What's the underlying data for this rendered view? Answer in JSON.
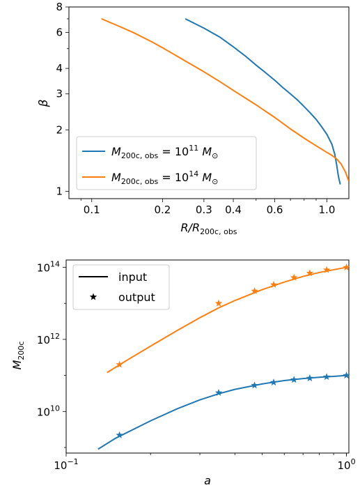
{
  "colors": {
    "blue": "#1f77b4",
    "orange": "#ff7f0e"
  },
  "chart_data": [
    {
      "type": "line",
      "xscale": "log",
      "yscale": "log",
      "xlim": [
        0.08,
        1.24
      ],
      "ylim": [
        0.92,
        8
      ],
      "xlabel_main": "R/R",
      "xlabel_sub": "200c, obs",
      "ylabel": "β",
      "xticks": [
        {
          "v": 0.1,
          "label": "0.1"
        },
        {
          "v": 0.2,
          "label": "0.2"
        },
        {
          "v": 0.3,
          "label": "0.3"
        },
        {
          "v": 0.4,
          "label": "0.4"
        },
        {
          "v": 0.6,
          "label": "0.6"
        },
        {
          "v": 1.0,
          "label": "1.0"
        }
      ],
      "yticks": [
        {
          "v": 1,
          "label": "1"
        },
        {
          "v": 2,
          "label": "2"
        },
        {
          "v": 3,
          "label": "3"
        },
        {
          "v": 4,
          "label": "4"
        },
        {
          "v": 6,
          "label": "6"
        },
        {
          "v": 8,
          "label": "8"
        }
      ],
      "legend": {
        "loc": "lower left"
      },
      "series": [
        {
          "name_pre": "M",
          "name_sub": "200c, obs",
          "name_mid": " = 10",
          "name_sup": "11",
          "name_post": " M",
          "name_post_sub": "⊙",
          "color": "#1f77b4",
          "x": [
            0.25,
            0.3,
            0.35,
            0.4,
            0.45,
            0.5,
            0.55,
            0.6,
            0.65,
            0.7,
            0.75,
            0.8,
            0.85,
            0.9,
            0.95,
            1.0,
            1.05,
            1.08,
            1.1,
            1.12,
            1.14
          ],
          "y": [
            7.0,
            6.3,
            5.7,
            5.1,
            4.6,
            4.15,
            3.8,
            3.5,
            3.22,
            3.0,
            2.8,
            2.6,
            2.42,
            2.25,
            2.07,
            1.9,
            1.7,
            1.52,
            1.35,
            1.18,
            1.08
          ]
        },
        {
          "name_pre": "M",
          "name_sub": "200c, obs",
          "name_mid": " = 10",
          "name_sup": "14",
          "name_post": " M",
          "name_post_sub": "⊙",
          "color": "#ff7f0e",
          "x": [
            0.11,
            0.13,
            0.15,
            0.18,
            0.2,
            0.25,
            0.3,
            0.35,
            0.4,
            0.5,
            0.6,
            0.7,
            0.8,
            0.9,
            1.0,
            1.05,
            1.1,
            1.15,
            1.2,
            1.24
          ],
          "y": [
            7.0,
            6.45,
            6.0,
            5.4,
            5.05,
            4.35,
            3.85,
            3.45,
            3.12,
            2.65,
            2.3,
            2.02,
            1.82,
            1.67,
            1.55,
            1.5,
            1.44,
            1.36,
            1.24,
            1.12
          ]
        }
      ]
    },
    {
      "type": "line",
      "xscale": "log",
      "yscale": "log",
      "xlim": [
        0.1,
        1.02
      ],
      "ylim": [
        700000000.0,
        160000000000000.0
      ],
      "xlabel": "a",
      "ylabel_main": "M",
      "ylabel_sub": "200c",
      "xticks": [
        {
          "v": 0.1,
          "base": "10",
          "exp": "−1"
        },
        {
          "v": 1.0,
          "base": "10",
          "exp": "0"
        }
      ],
      "yticks": [
        {
          "v": 10000000000.0,
          "base": "10",
          "exp": "10"
        },
        {
          "v": 1000000000000.0,
          "base": "10",
          "exp": "12"
        },
        {
          "v": 100000000000000.0,
          "base": "10",
          "exp": "14"
        }
      ],
      "legend": {
        "loc": "upper left",
        "entries": [
          {
            "label": "input",
            "marker": "line"
          },
          {
            "label": "output",
            "marker": "star"
          }
        ]
      },
      "series": [
        {
          "name": "input",
          "color": "#ff7f0e",
          "style": "line",
          "x": [
            0.14,
            0.16,
            0.2,
            0.25,
            0.3,
            0.35,
            0.4,
            0.5,
            0.6,
            0.7,
            0.8,
            0.9,
            1.0
          ],
          "y": [
            120000000000.0,
            230000000000.0,
            650000000000.0,
            1800000000000.0,
            4000000000000.0,
            7500000000000.0,
            12000000000000.0,
            24000000000000.0,
            39000000000000.0,
            56000000000000.0,
            72000000000000.0,
            86000000000000.0,
            100000000000000.0
          ]
        },
        {
          "name": "input",
          "color": "#1f77b4",
          "style": "line",
          "x": [
            0.13,
            0.15,
            0.2,
            0.25,
            0.3,
            0.35,
            0.4,
            0.5,
            0.6,
            0.7,
            0.8,
            0.9,
            1.0
          ],
          "y": [
            900000000.0,
            1800000000.0,
            5500000000.0,
            12000000000.0,
            21000000000.0,
            31000000000.0,
            41000000000.0,
            58000000000.0,
            72000000000.0,
            82000000000.0,
            89000000000.0,
            94000000000.0,
            100000000000.0
          ]
        },
        {
          "name": "output",
          "color": "#ff7f0e",
          "style": "star",
          "x": [
            0.155,
            0.35,
            0.47,
            0.55,
            0.65,
            0.74,
            0.85,
            1.0
          ],
          "y": [
            200000000000.0,
            10000000000000.0,
            22000000000000.0,
            33000000000000.0,
            52000000000000.0,
            69000000000000.0,
            85000000000000.0,
            100000000000000.0
          ]
        },
        {
          "name": "output",
          "color": "#1f77b4",
          "style": "star",
          "x": [
            0.155,
            0.35,
            0.47,
            0.55,
            0.65,
            0.74,
            0.85,
            1.0
          ],
          "y": [
            2200000000.0,
            33000000000.0,
            53000000000.0,
            64000000000.0,
            76000000000.0,
            84000000000.0,
            91000000000.0,
            100000000000.0
          ]
        }
      ]
    }
  ]
}
